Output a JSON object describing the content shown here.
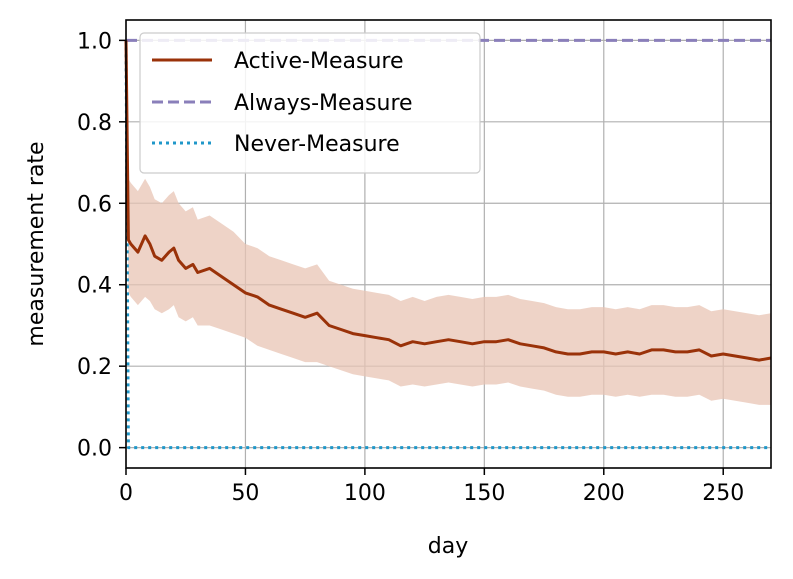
{
  "chart_data": {
    "type": "line",
    "title": "",
    "xlabel": "day",
    "ylabel": "measurement rate",
    "xlim": [
      0,
      270
    ],
    "ylim": [
      -0.05,
      1.05
    ],
    "xticks": [
      0,
      50,
      100,
      150,
      200,
      250
    ],
    "yticks": [
      0.0,
      0.2,
      0.4,
      0.6,
      0.8,
      1.0
    ],
    "xtick_labels": [
      "0",
      "50",
      "100",
      "150",
      "200",
      "250"
    ],
    "ytick_labels": [
      "0.0",
      "0.2",
      "0.4",
      "0.6",
      "0.8",
      "1.0"
    ],
    "grid": true,
    "legend_position": "top-left",
    "series": [
      {
        "name": "Active-Measure",
        "color": "#9a3209",
        "style": "solid",
        "x": [
          0,
          1,
          2,
          5,
          8,
          10,
          12,
          15,
          18,
          20,
          22,
          25,
          28,
          30,
          35,
          40,
          45,
          50,
          55,
          60,
          65,
          70,
          75,
          80,
          85,
          90,
          95,
          100,
          105,
          110,
          115,
          120,
          125,
          130,
          135,
          140,
          145,
          150,
          155,
          160,
          165,
          170,
          175,
          180,
          185,
          190,
          195,
          200,
          205,
          210,
          215,
          220,
          225,
          230,
          235,
          240,
          245,
          250,
          255,
          260,
          265,
          270
        ],
        "values": [
          1.0,
          0.51,
          0.5,
          0.48,
          0.52,
          0.5,
          0.47,
          0.46,
          0.48,
          0.49,
          0.46,
          0.44,
          0.45,
          0.43,
          0.44,
          0.42,
          0.4,
          0.38,
          0.37,
          0.35,
          0.34,
          0.33,
          0.32,
          0.33,
          0.3,
          0.29,
          0.28,
          0.275,
          0.27,
          0.265,
          0.25,
          0.26,
          0.255,
          0.26,
          0.265,
          0.26,
          0.255,
          0.26,
          0.26,
          0.265,
          0.255,
          0.25,
          0.245,
          0.235,
          0.23,
          0.23,
          0.235,
          0.235,
          0.23,
          0.235,
          0.23,
          0.24,
          0.24,
          0.235,
          0.235,
          0.24,
          0.225,
          0.23,
          0.225,
          0.22,
          0.215,
          0.22
        ],
        "band_lower": [
          1.0,
          0.38,
          0.37,
          0.35,
          0.37,
          0.36,
          0.34,
          0.33,
          0.34,
          0.35,
          0.32,
          0.31,
          0.32,
          0.3,
          0.3,
          0.29,
          0.28,
          0.27,
          0.25,
          0.24,
          0.23,
          0.22,
          0.21,
          0.21,
          0.2,
          0.19,
          0.18,
          0.175,
          0.17,
          0.165,
          0.15,
          0.155,
          0.15,
          0.155,
          0.16,
          0.155,
          0.15,
          0.155,
          0.155,
          0.16,
          0.15,
          0.145,
          0.14,
          0.13,
          0.125,
          0.125,
          0.13,
          0.13,
          0.125,
          0.13,
          0.125,
          0.13,
          0.13,
          0.125,
          0.125,
          0.13,
          0.115,
          0.12,
          0.115,
          0.11,
          0.105,
          0.105
        ],
        "band_upper": [
          1.0,
          0.66,
          0.65,
          0.63,
          0.66,
          0.64,
          0.61,
          0.6,
          0.62,
          0.63,
          0.6,
          0.58,
          0.59,
          0.56,
          0.57,
          0.55,
          0.53,
          0.5,
          0.49,
          0.47,
          0.46,
          0.45,
          0.44,
          0.45,
          0.41,
          0.4,
          0.39,
          0.385,
          0.38,
          0.375,
          0.36,
          0.37,
          0.36,
          0.37,
          0.375,
          0.37,
          0.365,
          0.37,
          0.37,
          0.375,
          0.365,
          0.36,
          0.355,
          0.345,
          0.34,
          0.34,
          0.345,
          0.345,
          0.34,
          0.345,
          0.34,
          0.35,
          0.35,
          0.345,
          0.345,
          0.35,
          0.335,
          0.34,
          0.335,
          0.33,
          0.325,
          0.33
        ]
      },
      {
        "name": "Always-Measure",
        "color": "#8a7fba",
        "style": "dashed",
        "x": [
          0,
          270
        ],
        "values": [
          1.0,
          1.0
        ]
      },
      {
        "name": "Never-Measure",
        "color": "#1f97c9",
        "style": "dotted",
        "x": [
          0,
          1,
          270
        ],
        "values": [
          1.0,
          0.0,
          0.0
        ]
      }
    ],
    "band_color": "#e8c4b4"
  }
}
